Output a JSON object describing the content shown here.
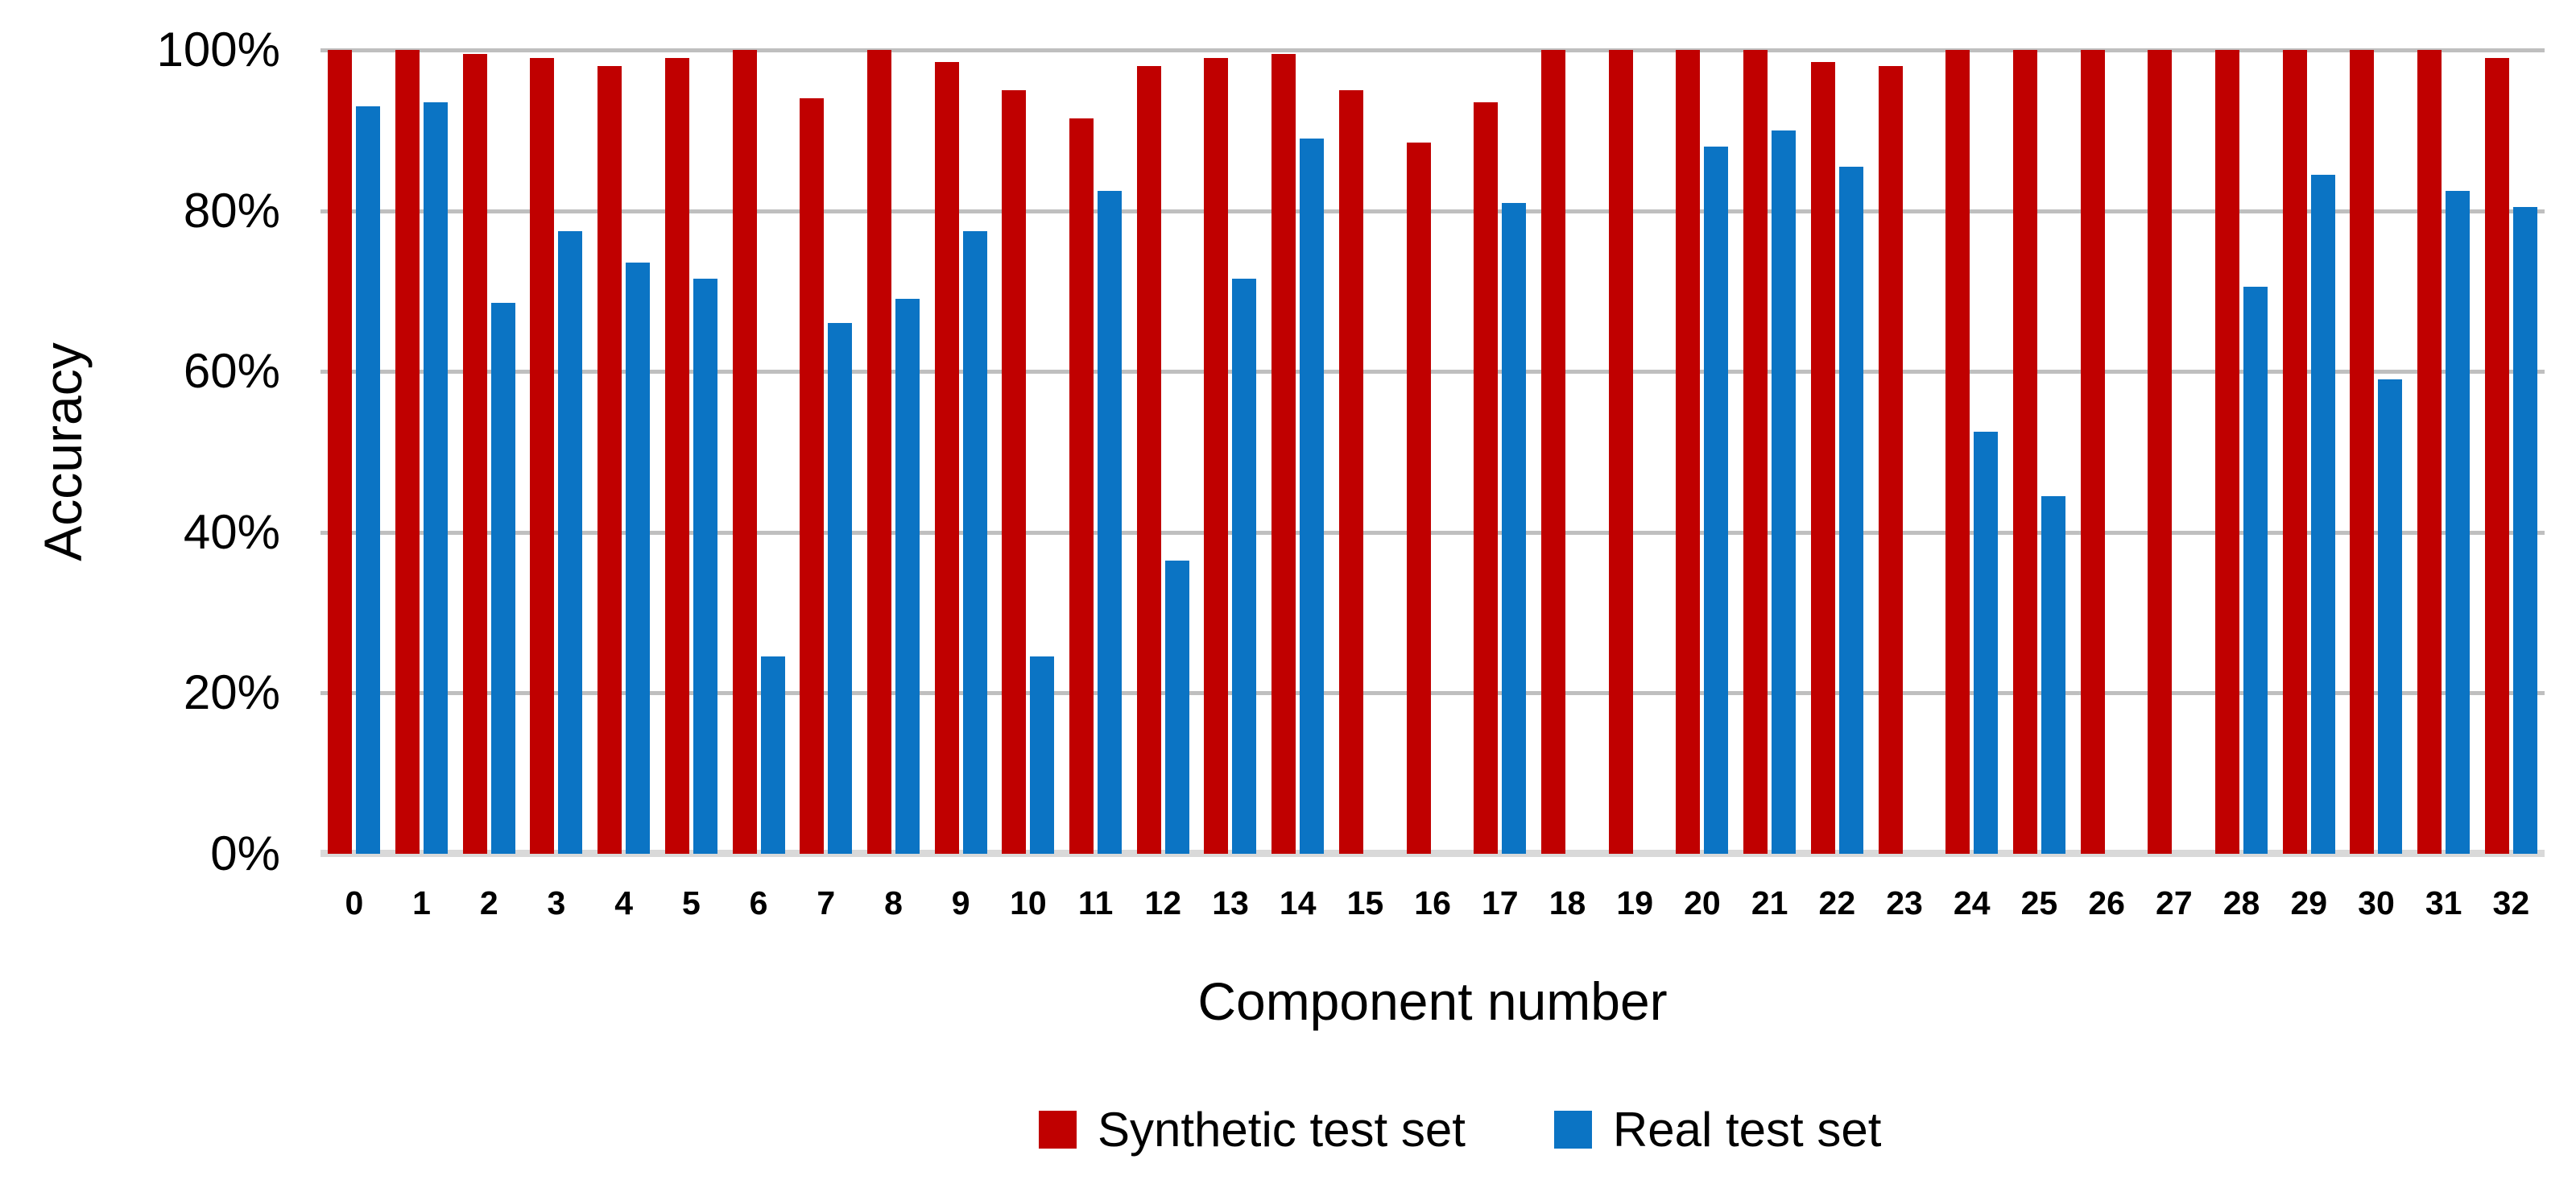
{
  "chart_data": {
    "type": "bar",
    "title": "",
    "xlabel": "Component number",
    "ylabel": "Accuracy",
    "ylim": [
      0,
      100
    ],
    "yticks": [
      {
        "label": "100%",
        "value": 100
      },
      {
        "label": "80%",
        "value": 80
      },
      {
        "label": "60%",
        "value": 60
      },
      {
        "label": "40%",
        "value": 40
      },
      {
        "label": "20%",
        "value": 20
      },
      {
        "label": "0%",
        "value": 0
      }
    ],
    "grid": "horizontal",
    "legend_position": "bottom",
    "categories": [
      "0",
      "1",
      "2",
      "3",
      "4",
      "5",
      "6",
      "7",
      "8",
      "9",
      "10",
      "11",
      "12",
      "13",
      "14",
      "15",
      "16",
      "17",
      "18",
      "19",
      "20",
      "21",
      "22",
      "23",
      "24",
      "25",
      "26",
      "27",
      "28",
      "29",
      "30",
      "31",
      "32"
    ],
    "series": [
      {
        "name": "Synthetic test set",
        "color": "#c00000",
        "values": [
          100,
          100,
          99.5,
          99,
          98,
          99,
          100,
          94,
          100,
          98.5,
          95,
          91.5,
          98,
          99,
          99.5,
          95,
          88.5,
          93.5,
          100,
          100,
          100,
          100,
          98.5,
          98,
          100,
          100,
          100,
          100,
          100,
          100,
          100,
          100,
          99
        ]
      },
      {
        "name": "Real test set",
        "color": "#0b74c4",
        "values": [
          93,
          93.5,
          68.5,
          77.5,
          73.5,
          71.5,
          24.5,
          66,
          69,
          77.5,
          24.5,
          82.5,
          36.5,
          71.5,
          89,
          0,
          0,
          81,
          0,
          0,
          88,
          90,
          85.5,
          0,
          52.5,
          44.5,
          0,
          0,
          70.5,
          84.5,
          59,
          82.5,
          80.5
        ]
      }
    ],
    "colors": {
      "gridline": "#bfbfbf",
      "baseline": "#d9d9d9",
      "text": "#000000"
    }
  }
}
